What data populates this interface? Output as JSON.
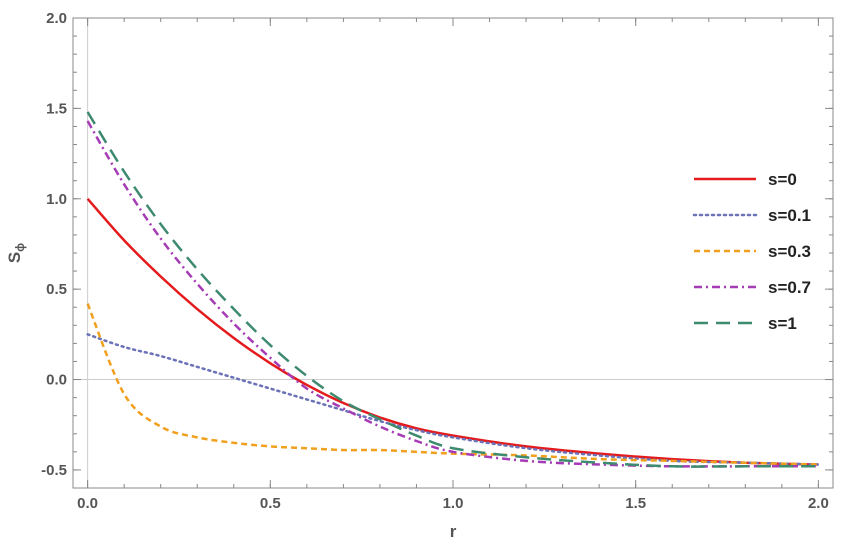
{
  "chart_data": {
    "type": "line",
    "xlabel": "r",
    "ylabel": "S",
    "ylabel_sub": "ϕ",
    "xlim": [
      -0.04,
      2.04
    ],
    "ylim": [
      -0.6,
      2.0
    ],
    "grid": false,
    "legend_position": "right",
    "x_ticks": [
      {
        "value": 0.0,
        "label": "0.0"
      },
      {
        "value": 0.5,
        "label": "0.5"
      },
      {
        "value": 1.0,
        "label": "1.0"
      },
      {
        "value": 1.5,
        "label": "1.5"
      },
      {
        "value": 2.0,
        "label": "2.0"
      }
    ],
    "y_ticks": [
      {
        "value": -0.5,
        "label": "-0.5"
      },
      {
        "value": 0.0,
        "label": "0.0"
      },
      {
        "value": 0.5,
        "label": "0.5"
      },
      {
        "value": 1.0,
        "label": "1.0"
      },
      {
        "value": 1.5,
        "label": "1.5"
      },
      {
        "value": 2.0,
        "label": "2.0"
      }
    ],
    "x": [
      0,
      0.1,
      0.2,
      0.3,
      0.4,
      0.5,
      0.6,
      0.7,
      0.8,
      0.9,
      1.0,
      1.2,
      1.4,
      1.6,
      1.8,
      2.0
    ],
    "series": [
      {
        "name": "s=0",
        "color": "#e41a1c",
        "dash": "solid",
        "values": [
          1.0,
          0.77,
          0.57,
          0.39,
          0.23,
          0.09,
          -0.03,
          -0.13,
          -0.21,
          -0.27,
          -0.31,
          -0.37,
          -0.41,
          -0.44,
          -0.46,
          -0.47
        ]
      },
      {
        "name": "s=0.1",
        "color": "#6b72b8",
        "dash": "dotted",
        "values": [
          0.25,
          0.18,
          0.13,
          0.07,
          0.01,
          -0.05,
          -0.11,
          -0.17,
          -0.23,
          -0.28,
          -0.32,
          -0.38,
          -0.42,
          -0.45,
          -0.46,
          -0.47
        ]
      },
      {
        "name": "s=0.3",
        "color": "#f0a01e",
        "dash": "dashed",
        "values": [
          0.42,
          -0.08,
          -0.26,
          -0.32,
          -0.35,
          -0.37,
          -0.38,
          -0.39,
          -0.39,
          -0.4,
          -0.41,
          -0.42,
          -0.44,
          -0.45,
          -0.46,
          -0.47
        ]
      },
      {
        "name": "s=0.7",
        "color": "#a53bb5",
        "dash": "dashdot",
        "values": [
          1.43,
          1.08,
          0.78,
          0.53,
          0.31,
          0.12,
          -0.05,
          -0.16,
          -0.26,
          -0.34,
          -0.4,
          -0.45,
          -0.47,
          -0.48,
          -0.48,
          -0.48
        ]
      },
      {
        "name": "s=1",
        "color": "#3e8a6e",
        "dash": "longdash",
        "values": [
          1.48,
          1.15,
          0.86,
          0.61,
          0.39,
          0.19,
          0.02,
          -0.12,
          -0.22,
          -0.31,
          -0.38,
          -0.43,
          -0.46,
          -0.48,
          -0.48,
          -0.48
        ]
      }
    ]
  }
}
